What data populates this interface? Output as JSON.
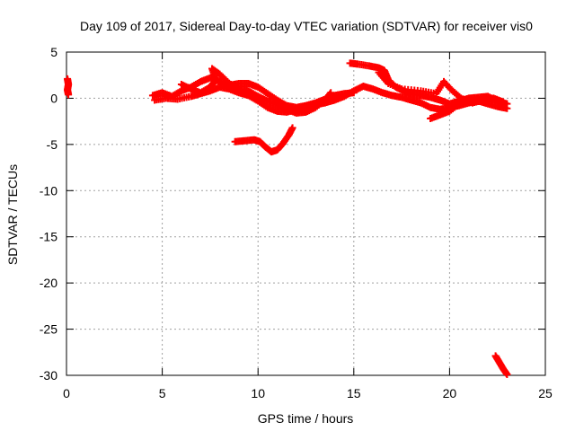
{
  "chart_data": {
    "type": "scatter",
    "title": "Day 109 of 2017, Sidereal Day-to-day VTEC variation (SDTVAR) for receiver vis0",
    "xlabel": "GPS time / hours",
    "ylabel": "SDTVAR / TECUs",
    "xlim": [
      0,
      25
    ],
    "ylim": [
      -30,
      5
    ],
    "xticks": [
      "0",
      "5",
      "10",
      "15",
      "20",
      "25"
    ],
    "yticks": [
      "5",
      "0",
      "-5",
      "-10",
      "-15",
      "-20",
      "-25",
      "-30"
    ],
    "grid": true,
    "series": [
      {
        "color": "#ff0000",
        "marker": "plus",
        "tracks": [
          [
            [
              0.05,
              2.1
            ],
            [
              0.1,
              1.5
            ],
            [
              0.05,
              0.9
            ],
            [
              0.1,
              0.4
            ]
          ],
          [
            [
              4.5,
              0.3
            ],
            [
              5.0,
              0.6
            ],
            [
              5.5,
              0.2
            ],
            [
              6.0,
              0.8
            ],
            [
              6.5,
              1.2
            ],
            [
              7.0,
              1.8
            ],
            [
              7.5,
              2.2
            ],
            [
              8.0,
              1.8
            ],
            [
              8.5,
              1.4
            ],
            [
              9.0,
              1.6
            ],
            [
              9.5,
              1.6
            ],
            [
              10.0,
              1.2
            ],
            [
              10.5,
              0.5
            ],
            [
              11.0,
              -0.2
            ],
            [
              11.5,
              -0.8
            ],
            [
              12.0,
              -1.0
            ],
            [
              12.5,
              -0.8
            ],
            [
              13.0,
              -0.5
            ],
            [
              13.5,
              -0.1
            ],
            [
              14.0,
              0.3
            ],
            [
              14.5,
              0.5
            ],
            [
              15.0,
              0.6
            ]
          ],
          [
            [
              4.6,
              -0.2
            ],
            [
              5.2,
              0.0
            ],
            [
              5.8,
              -0.1
            ],
            [
              6.5,
              0.2
            ],
            [
              7.0,
              0.5
            ],
            [
              7.5,
              0.8
            ],
            [
              8.0,
              1.2
            ],
            [
              8.5,
              1.0
            ],
            [
              9.0,
              0.6
            ],
            [
              9.5,
              0.3
            ],
            [
              10.0,
              -0.3
            ],
            [
              10.5,
              -1.0
            ],
            [
              11.0,
              -1.4
            ],
            [
              11.5,
              -1.5
            ],
            [
              12.0,
              -1.2
            ],
            [
              12.5,
              -0.9
            ],
            [
              13.0,
              -0.7
            ],
            [
              13.5,
              -0.5
            ],
            [
              14.0,
              -0.2
            ],
            [
              14.5,
              0.2
            ],
            [
              15.0,
              0.8
            ],
            [
              15.5,
              1.3
            ],
            [
              16.0,
              1.0
            ],
            [
              16.5,
              0.6
            ],
            [
              17.0,
              0.3
            ],
            [
              17.5,
              0.1
            ],
            [
              18.0,
              -0.2
            ],
            [
              18.5,
              -0.5
            ],
            [
              19.0,
              -1.0
            ],
            [
              19.5,
              -1.2
            ],
            [
              20.0,
              -1.0
            ],
            [
              20.5,
              -0.8
            ],
            [
              21.0,
              -0.5
            ],
            [
              21.5,
              -0.3
            ],
            [
              22.0,
              -0.6
            ],
            [
              22.5,
              -0.9
            ],
            [
              23.0,
              -1.1
            ]
          ],
          [
            [
              6.0,
              1.5
            ],
            [
              6.5,
              1.0
            ],
            [
              7.0,
              0.6
            ],
            [
              7.5,
              1.2
            ],
            [
              7.8,
              2.0
            ],
            [
              7.6,
              3.2
            ],
            [
              8.0,
              2.6
            ],
            [
              8.5,
              1.6
            ],
            [
              9.0,
              1.0
            ],
            [
              9.5,
              0.8
            ],
            [
              10.0,
              0.2
            ],
            [
              10.5,
              -0.3
            ],
            [
              11.0,
              -0.7
            ],
            [
              11.5,
              -1.2
            ],
            [
              12.0,
              -1.6
            ],
            [
              12.5,
              -1.5
            ],
            [
              13.0,
              -1.0
            ],
            [
              13.5,
              -0.2
            ],
            [
              13.8,
              0.6
            ]
          ],
          [
            [
              14.8,
              3.8
            ],
            [
              15.2,
              3.7
            ],
            [
              15.8,
              3.5
            ],
            [
              16.3,
              3.3
            ],
            [
              16.6,
              3.0
            ],
            [
              16.8,
              2.0
            ],
            [
              17.2,
              1.2
            ],
            [
              17.6,
              0.8
            ],
            [
              18.0,
              0.5
            ],
            [
              18.5,
              0.3
            ],
            [
              19.0,
              0.1
            ],
            [
              19.5,
              -0.2
            ],
            [
              20.0,
              -0.6
            ],
            [
              20.5,
              -0.3
            ],
            [
              21.0,
              0.0
            ],
            [
              21.5,
              0.1
            ],
            [
              22.0,
              0.2
            ],
            [
              22.5,
              -0.3
            ],
            [
              23.0,
              -0.6
            ]
          ],
          [
            [
              16.3,
              2.8
            ],
            [
              16.8,
              1.6
            ],
            [
              17.5,
              1.0
            ],
            [
              18.5,
              0.8
            ],
            [
              19.3,
              0.5
            ],
            [
              19.7,
              1.8
            ],
            [
              20.1,
              0.9
            ],
            [
              20.6,
              0.0
            ],
            [
              21.2,
              -0.5
            ],
            [
              21.8,
              -0.2
            ],
            [
              22.3,
              0.0
            ],
            [
              22.8,
              -0.4
            ]
          ],
          [
            [
              19.0,
              -2.2
            ],
            [
              19.5,
              -1.8
            ],
            [
              20.0,
              -1.4
            ],
            [
              20.5,
              -0.6
            ],
            [
              21.0,
              -0.2
            ]
          ],
          [
            [
              8.8,
              -4.7
            ],
            [
              9.3,
              -4.6
            ],
            [
              9.8,
              -4.5
            ],
            [
              10.1,
              -4.7
            ],
            [
              10.4,
              -5.3
            ],
            [
              10.7,
              -5.8
            ],
            [
              11.0,
              -5.6
            ],
            [
              11.3,
              -4.9
            ],
            [
              11.6,
              -4.0
            ],
            [
              11.8,
              -3.2
            ]
          ],
          [
            [
              22.4,
              -27.9
            ],
            [
              22.6,
              -28.6
            ],
            [
              22.8,
              -29.3
            ],
            [
              23.0,
              -29.9
            ]
          ]
        ]
      }
    ]
  }
}
